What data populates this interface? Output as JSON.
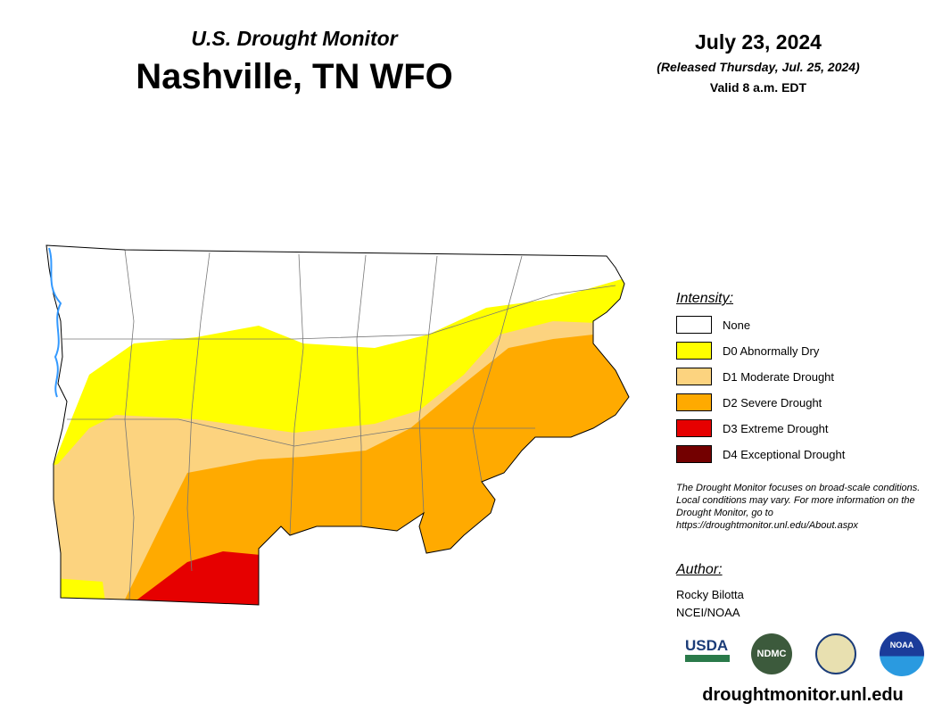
{
  "header": {
    "subtitle": "U.S. Drought Monitor",
    "title": "Nashville, TN WFO",
    "date": "July 23, 2024",
    "released": "(Released Thursday, Jul. 25, 2024)",
    "valid": "Valid 8 a.m. EDT"
  },
  "legend": {
    "title": "Intensity:",
    "items": [
      {
        "label": "None",
        "color": "#ffffff"
      },
      {
        "label": "D0 Abnormally Dry",
        "color": "#ffff00"
      },
      {
        "label": "D1 Moderate Drought",
        "color": "#fcd37f"
      },
      {
        "label": "D2 Severe Drought",
        "color": "#ffaa00"
      },
      {
        "label": "D3 Extreme Drought",
        "color": "#e60000"
      },
      {
        "label": "D4 Exceptional Drought",
        "color": "#730000"
      }
    ]
  },
  "note": "The Drought Monitor focuses on broad-scale conditions. Local conditions may vary. For more information on the Drought Monitor, go to https://droughtmonitor.unl.edu/About.aspx",
  "author": {
    "title": "Author:",
    "lines": [
      "Rocky Bilotta",
      "NCEI/NOAA"
    ]
  },
  "logos": [
    "USDA",
    "NDMC",
    "NOAA"
  ],
  "footer": "droughtmonitor.unl.edu"
}
